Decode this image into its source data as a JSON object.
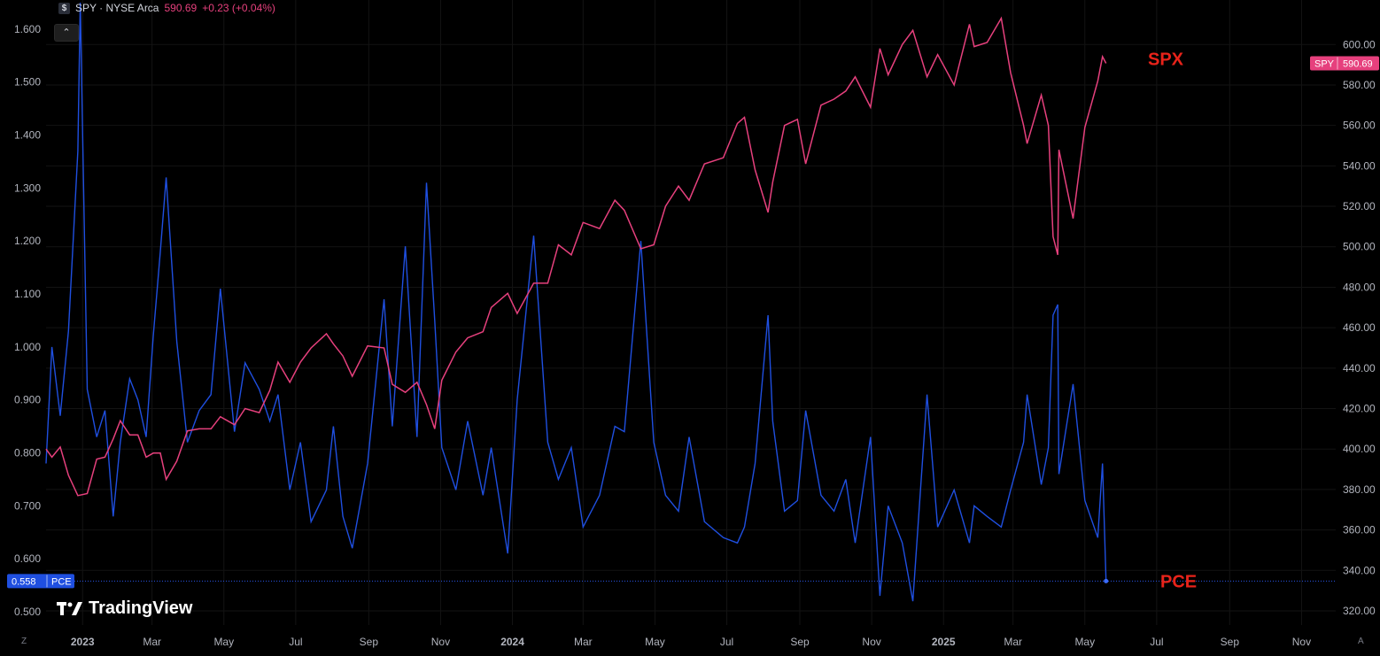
{
  "legend": {
    "icon": "dollar-icon",
    "symbol": "SPY · NYSE Arca",
    "price": "590.69",
    "change": "+0.23 (+0.04%)"
  },
  "collapse_icon": "chevron-up-icon",
  "watermark": "TradingView",
  "corners": {
    "left": "Z",
    "right": "A"
  },
  "colors": {
    "spx": "#e6407d",
    "pce": "#1f4fe0",
    "background": "#000000",
    "annotation": "#e8231a"
  },
  "chart_data": {
    "type": "line",
    "annotations": [
      "SPX",
      "PCE"
    ],
    "left_axis": {
      "ticks": [
        "0.500",
        "0.600",
        "0.700",
        "0.800",
        "0.900",
        "1.000",
        "1.100",
        "1.200",
        "1.300",
        "1.400",
        "1.500",
        "1.600"
      ],
      "range": [
        0.475,
        1.655
      ]
    },
    "right_axis": {
      "ticks": [
        "320.00",
        "340.00",
        "360.00",
        "380.00",
        "400.00",
        "420.00",
        "440.00",
        "460.00",
        "480.00",
        "500.00",
        "520.00",
        "540.00",
        "560.00",
        "580.00",
        "600.00"
      ],
      "range": [
        313,
        622
      ]
    },
    "x_axis": {
      "labels": [
        "2023",
        "Mar",
        "May",
        "Jul",
        "Sep",
        "Nov",
        "2024",
        "Mar",
        "May",
        "Jul",
        "Sep",
        "Nov",
        "2025",
        "Mar",
        "May",
        "Jul",
        "Sep",
        "Nov"
      ],
      "bold": [
        "2023",
        "2024",
        "2025"
      ]
    },
    "badges": {
      "spy": {
        "label": "SPY",
        "value": "590.69"
      },
      "pce": {
        "value": "0.558",
        "label": "PCE"
      }
    },
    "series": [
      {
        "name": "SPY",
        "axis": "right",
        "values": [
          {
            "x": "2022-12-01",
            "y": 400
          },
          {
            "x": "2022-12-06",
            "y": 396
          },
          {
            "x": "2022-12-13",
            "y": 401
          },
          {
            "x": "2022-12-20",
            "y": 387
          },
          {
            "x": "2022-12-28",
            "y": 377
          },
          {
            "x": "2023-01-05",
            "y": 378
          },
          {
            "x": "2023-01-13",
            "y": 395
          },
          {
            "x": "2023-01-20",
            "y": 396
          },
          {
            "x": "2023-01-27",
            "y": 405
          },
          {
            "x": "2023-02-02",
            "y": 414
          },
          {
            "x": "2023-02-10",
            "y": 407
          },
          {
            "x": "2023-02-17",
            "y": 407
          },
          {
            "x": "2023-02-24",
            "y": 396
          },
          {
            "x": "2023-03-02",
            "y": 398
          },
          {
            "x": "2023-03-08",
            "y": 398
          },
          {
            "x": "2023-03-13",
            "y": 385
          },
          {
            "x": "2023-03-22",
            "y": 394
          },
          {
            "x": "2023-03-31",
            "y": 409
          },
          {
            "x": "2023-04-10",
            "y": 410
          },
          {
            "x": "2023-04-20",
            "y": 410
          },
          {
            "x": "2023-04-28",
            "y": 416
          },
          {
            "x": "2023-05-10",
            "y": 412
          },
          {
            "x": "2023-05-19",
            "y": 420
          },
          {
            "x": "2023-05-31",
            "y": 418
          },
          {
            "x": "2023-06-09",
            "y": 429
          },
          {
            "x": "2023-06-16",
            "y": 443
          },
          {
            "x": "2023-06-26",
            "y": 433
          },
          {
            "x": "2023-07-05",
            "y": 443
          },
          {
            "x": "2023-07-14",
            "y": 450
          },
          {
            "x": "2023-07-27",
            "y": 457
          },
          {
            "x": "2023-08-02",
            "y": 452
          },
          {
            "x": "2023-08-10",
            "y": 446
          },
          {
            "x": "2023-08-18",
            "y": 436
          },
          {
            "x": "2023-08-31",
            "y": 451
          },
          {
            "x": "2023-09-14",
            "y": 450
          },
          {
            "x": "2023-09-21",
            "y": 432
          },
          {
            "x": "2023-10-02",
            "y": 428
          },
          {
            "x": "2023-10-12",
            "y": 433
          },
          {
            "x": "2023-10-20",
            "y": 422
          },
          {
            "x": "2023-10-27",
            "y": 410
          },
          {
            "x": "2023-11-02",
            "y": 434
          },
          {
            "x": "2023-11-14",
            "y": 448
          },
          {
            "x": "2023-11-24",
            "y": 455
          },
          {
            "x": "2023-12-07",
            "y": 458
          },
          {
            "x": "2023-12-14",
            "y": 470
          },
          {
            "x": "2023-12-28",
            "y": 477
          },
          {
            "x": "2024-01-05",
            "y": 467
          },
          {
            "x": "2024-01-19",
            "y": 482
          },
          {
            "x": "2024-01-31",
            "y": 482
          },
          {
            "x": "2024-02-09",
            "y": 501
          },
          {
            "x": "2024-02-20",
            "y": 496
          },
          {
            "x": "2024-03-01",
            "y": 512
          },
          {
            "x": "2024-03-15",
            "y": 509
          },
          {
            "x": "2024-03-28",
            "y": 523
          },
          {
            "x": "2024-04-05",
            "y": 518
          },
          {
            "x": "2024-04-19",
            "y": 499
          },
          {
            "x": "2024-04-30",
            "y": 501
          },
          {
            "x": "2024-05-10",
            "y": 520
          },
          {
            "x": "2024-05-21",
            "y": 530
          },
          {
            "x": "2024-05-30",
            "y": 523
          },
          {
            "x": "2024-06-12",
            "y": 541
          },
          {
            "x": "2024-06-28",
            "y": 544
          },
          {
            "x": "2024-07-10",
            "y": 561
          },
          {
            "x": "2024-07-16",
            "y": 564
          },
          {
            "x": "2024-07-25",
            "y": 538
          },
          {
            "x": "2024-08-05",
            "y": 517
          },
          {
            "x": "2024-08-09",
            "y": 532
          },
          {
            "x": "2024-08-19",
            "y": 560
          },
          {
            "x": "2024-08-30",
            "y": 563
          },
          {
            "x": "2024-09-06",
            "y": 541
          },
          {
            "x": "2024-09-19",
            "y": 570
          },
          {
            "x": "2024-09-30",
            "y": 573
          },
          {
            "x": "2024-10-10",
            "y": 577
          },
          {
            "x": "2024-10-18",
            "y": 584
          },
          {
            "x": "2024-10-31",
            "y": 569
          },
          {
            "x": "2024-11-08",
            "y": 598
          },
          {
            "x": "2024-11-15",
            "y": 585
          },
          {
            "x": "2024-11-27",
            "y": 600
          },
          {
            "x": "2024-12-06",
            "y": 607
          },
          {
            "x": "2024-12-18",
            "y": 584
          },
          {
            "x": "2024-12-27",
            "y": 595
          },
          {
            "x": "2025-01-10",
            "y": 580
          },
          {
            "x": "2025-01-23",
            "y": 610
          },
          {
            "x": "2025-01-27",
            "y": 599
          },
          {
            "x": "2025-02-07",
            "y": 601
          },
          {
            "x": "2025-02-19",
            "y": 613
          },
          {
            "x": "2025-02-27",
            "y": 586
          },
          {
            "x": "2025-03-10",
            "y": 560
          },
          {
            "x": "2025-03-13",
            "y": 551
          },
          {
            "x": "2025-03-25",
            "y": 575
          },
          {
            "x": "2025-03-31",
            "y": 560
          },
          {
            "x": "2025-04-04",
            "y": 505
          },
          {
            "x": "2025-04-08",
            "y": 496
          },
          {
            "x": "2025-04-09",
            "y": 548
          },
          {
            "x": "2025-04-21",
            "y": 514
          },
          {
            "x": "2025-05-01",
            "y": 559
          },
          {
            "x": "2025-05-12",
            "y": 582
          },
          {
            "x": "2025-05-16",
            "y": 594
          },
          {
            "x": "2025-05-19",
            "y": 590.69
          }
        ]
      },
      {
        "name": "PCE",
        "axis": "left",
        "values": [
          {
            "x": "2022-12-01",
            "y": 0.78
          },
          {
            "x": "2022-12-06",
            "y": 1.0
          },
          {
            "x": "2022-12-13",
            "y": 0.87
          },
          {
            "x": "2022-12-20",
            "y": 1.03
          },
          {
            "x": "2022-12-28",
            "y": 1.37
          },
          {
            "x": "2022-12-30",
            "y": 1.65
          },
          {
            "x": "2023-01-05",
            "y": 0.92
          },
          {
            "x": "2023-01-13",
            "y": 0.83
          },
          {
            "x": "2023-01-20",
            "y": 0.88
          },
          {
            "x": "2023-01-27",
            "y": 0.68
          },
          {
            "x": "2023-02-02",
            "y": 0.82
          },
          {
            "x": "2023-02-10",
            "y": 0.94
          },
          {
            "x": "2023-02-17",
            "y": 0.9
          },
          {
            "x": "2023-02-24",
            "y": 0.83
          },
          {
            "x": "2023-03-02",
            "y": 1.02
          },
          {
            "x": "2023-03-08",
            "y": 1.18
          },
          {
            "x": "2023-03-13",
            "y": 1.32
          },
          {
            "x": "2023-03-22",
            "y": 1.01
          },
          {
            "x": "2023-03-31",
            "y": 0.82
          },
          {
            "x": "2023-04-10",
            "y": 0.88
          },
          {
            "x": "2023-04-20",
            "y": 0.91
          },
          {
            "x": "2023-04-28",
            "y": 1.11
          },
          {
            "x": "2023-05-10",
            "y": 0.84
          },
          {
            "x": "2023-05-19",
            "y": 0.97
          },
          {
            "x": "2023-05-31",
            "y": 0.92
          },
          {
            "x": "2023-06-09",
            "y": 0.86
          },
          {
            "x": "2023-06-16",
            "y": 0.91
          },
          {
            "x": "2023-06-26",
            "y": 0.73
          },
          {
            "x": "2023-07-05",
            "y": 0.82
          },
          {
            "x": "2023-07-14",
            "y": 0.67
          },
          {
            "x": "2023-07-27",
            "y": 0.73
          },
          {
            "x": "2023-08-02",
            "y": 0.85
          },
          {
            "x": "2023-08-10",
            "y": 0.68
          },
          {
            "x": "2023-08-18",
            "y": 0.62
          },
          {
            "x": "2023-08-31",
            "y": 0.78
          },
          {
            "x": "2023-09-14",
            "y": 1.09
          },
          {
            "x": "2023-09-21",
            "y": 0.85
          },
          {
            "x": "2023-10-02",
            "y": 1.19
          },
          {
            "x": "2023-10-12",
            "y": 0.83
          },
          {
            "x": "2023-10-20",
            "y": 1.31
          },
          {
            "x": "2023-10-27",
            "y": 1.05
          },
          {
            "x": "2023-11-02",
            "y": 0.81
          },
          {
            "x": "2023-11-14",
            "y": 0.73
          },
          {
            "x": "2023-11-24",
            "y": 0.86
          },
          {
            "x": "2023-12-07",
            "y": 0.72
          },
          {
            "x": "2023-12-14",
            "y": 0.81
          },
          {
            "x": "2023-12-28",
            "y": 0.61
          },
          {
            "x": "2024-01-05",
            "y": 0.9
          },
          {
            "x": "2024-01-19",
            "y": 1.21
          },
          {
            "x": "2024-01-31",
            "y": 0.82
          },
          {
            "x": "2024-02-09",
            "y": 0.75
          },
          {
            "x": "2024-02-20",
            "y": 0.81
          },
          {
            "x": "2024-03-01",
            "y": 0.66
          },
          {
            "x": "2024-03-15",
            "y": 0.72
          },
          {
            "x": "2024-03-28",
            "y": 0.85
          },
          {
            "x": "2024-04-05",
            "y": 0.84
          },
          {
            "x": "2024-04-19",
            "y": 1.2
          },
          {
            "x": "2024-04-30",
            "y": 0.82
          },
          {
            "x": "2024-05-10",
            "y": 0.72
          },
          {
            "x": "2024-05-21",
            "y": 0.69
          },
          {
            "x": "2024-05-30",
            "y": 0.83
          },
          {
            "x": "2024-06-12",
            "y": 0.67
          },
          {
            "x": "2024-06-28",
            "y": 0.64
          },
          {
            "x": "2024-07-10",
            "y": 0.63
          },
          {
            "x": "2024-07-16",
            "y": 0.66
          },
          {
            "x": "2024-07-25",
            "y": 0.78
          },
          {
            "x": "2024-08-05",
            "y": 1.06
          },
          {
            "x": "2024-08-09",
            "y": 0.86
          },
          {
            "x": "2024-08-19",
            "y": 0.69
          },
          {
            "x": "2024-08-30",
            "y": 0.71
          },
          {
            "x": "2024-09-06",
            "y": 0.88
          },
          {
            "x": "2024-09-19",
            "y": 0.72
          },
          {
            "x": "2024-09-30",
            "y": 0.69
          },
          {
            "x": "2024-10-10",
            "y": 0.75
          },
          {
            "x": "2024-10-18",
            "y": 0.63
          },
          {
            "x": "2024-10-31",
            "y": 0.83
          },
          {
            "x": "2024-11-08",
            "y": 0.53
          },
          {
            "x": "2024-11-15",
            "y": 0.7
          },
          {
            "x": "2024-11-27",
            "y": 0.63
          },
          {
            "x": "2024-12-06",
            "y": 0.52
          },
          {
            "x": "2024-12-18",
            "y": 0.91
          },
          {
            "x": "2024-12-27",
            "y": 0.66
          },
          {
            "x": "2025-01-10",
            "y": 0.73
          },
          {
            "x": "2025-01-23",
            "y": 0.63
          },
          {
            "x": "2025-01-27",
            "y": 0.7
          },
          {
            "x": "2025-02-07",
            "y": 0.68
          },
          {
            "x": "2025-02-19",
            "y": 0.66
          },
          {
            "x": "2025-02-27",
            "y": 0.73
          },
          {
            "x": "2025-03-10",
            "y": 0.82
          },
          {
            "x": "2025-03-13",
            "y": 0.91
          },
          {
            "x": "2025-03-25",
            "y": 0.74
          },
          {
            "x": "2025-03-31",
            "y": 0.81
          },
          {
            "x": "2025-04-04",
            "y": 1.06
          },
          {
            "x": "2025-04-08",
            "y": 1.08
          },
          {
            "x": "2025-04-09",
            "y": 0.76
          },
          {
            "x": "2025-04-21",
            "y": 0.93
          },
          {
            "x": "2025-05-01",
            "y": 0.71
          },
          {
            "x": "2025-05-12",
            "y": 0.64
          },
          {
            "x": "2025-05-16",
            "y": 0.78
          },
          {
            "x": "2025-05-19",
            "y": 0.558
          }
        ]
      }
    ]
  }
}
